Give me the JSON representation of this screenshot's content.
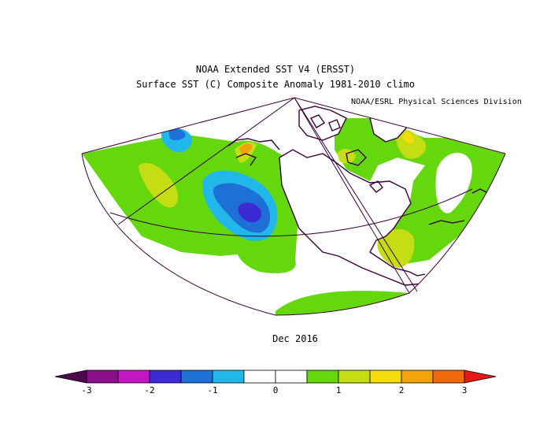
{
  "header": {
    "dataset": "NOAA Extended SST V4 (ERSST)",
    "variable": "Surface SST (C) Composite Anomaly 1981-2010 climo",
    "credit": "NOAA/ESRL Physical Sciences Division"
  },
  "date": "Dec 2016",
  "legend": {
    "ticks": [
      "-3",
      "-2",
      "-1",
      "0",
      "1",
      "2",
      "3"
    ],
    "colors": [
      "#8b0f8b",
      "#c417c4",
      "#3c2bd2",
      "#1e6fd6",
      "#21b7ea",
      "#ffffff",
      "#ffffff",
      "#64d80d",
      "#c5dd13",
      "#f7dc0c",
      "#f5a30d",
      "#f36a0d"
    ],
    "low_end_color": "#4b0a4b",
    "high_end_color": "#e61919"
  },
  "map_colors": {
    "positive_1": "#64d80d",
    "positive_2": "#c5dd13",
    "positive_3": "#f7dc0c",
    "positive_4": "#f5a30d",
    "negative_1": "#21b7ea",
    "negative_2": "#1e6fd6",
    "negative_3": "#3c2bd2",
    "coast": "#3a003a"
  }
}
